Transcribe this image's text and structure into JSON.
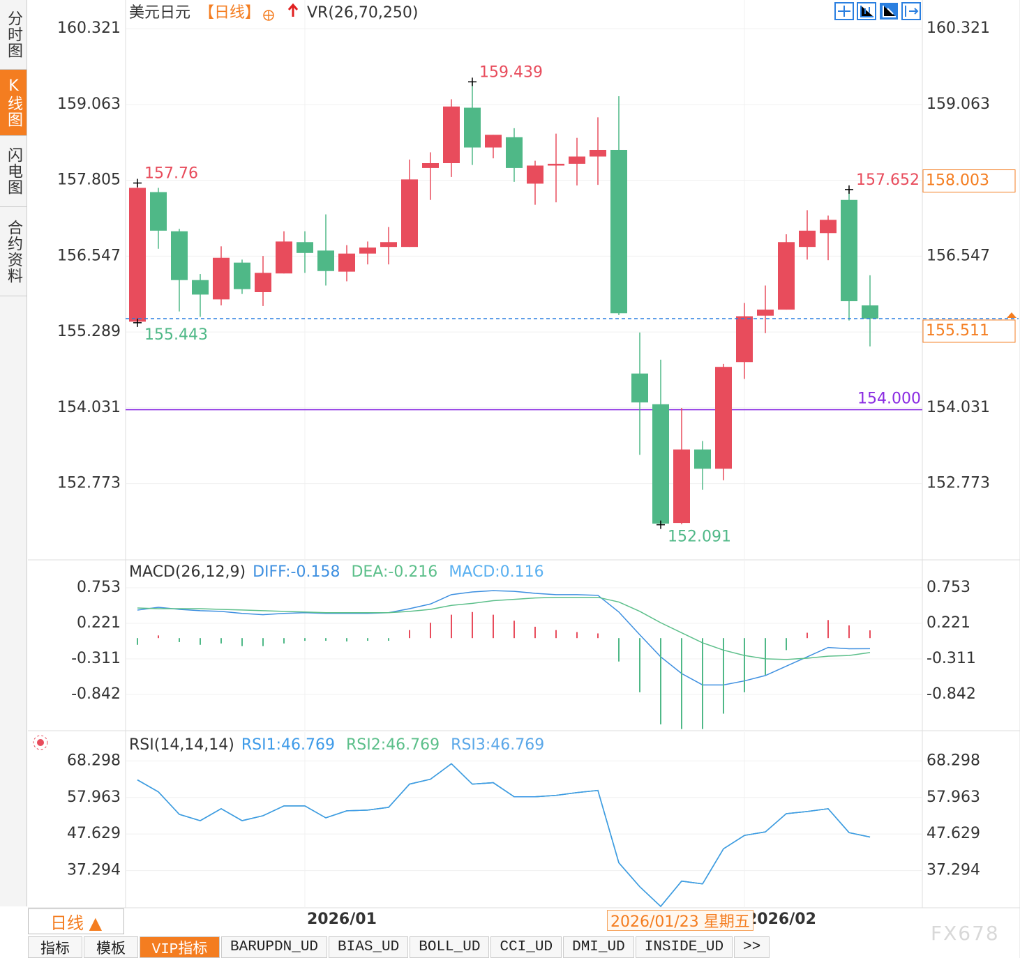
{
  "chart_data": [
    {
      "type": "candlestick",
      "title": "美元日元",
      "period": "【日线】",
      "indicator": "VR(26,70,250)",
      "categories": [
        null,
        null,
        null,
        null,
        null,
        null,
        null,
        null,
        "2026/01",
        null,
        null,
        null,
        null,
        null,
        null,
        null,
        null,
        null,
        null,
        null,
        null,
        null,
        null,
        null,
        null,
        null,
        null,
        null,
        null,
        "2026/02",
        null,
        null,
        null,
        null,
        null,
        null
      ],
      "open": [
        155.46,
        157.61,
        156.96,
        156.15,
        155.83,
        156.44,
        155.95,
        156.26,
        156.78,
        156.64,
        156.29,
        156.59,
        156.7,
        156.7,
        158.01,
        158.09,
        159.01,
        158.35,
        158.52,
        157.75,
        158.05,
        158.08,
        158.2,
        158.31,
        154.6,
        154.09,
        152.12,
        153.34,
        153.02,
        154.79,
        155.56,
        155.66,
        156.7,
        156.93,
        157.48,
        155.73
      ],
      "high": [
        157.76,
        157.68,
        157.0,
        156.25,
        156.71,
        156.49,
        156.55,
        156.96,
        156.96,
        157.24,
        156.73,
        156.79,
        157.03,
        158.15,
        158.27,
        159.15,
        159.439,
        158.56,
        158.67,
        158.13,
        158.58,
        158.51,
        158.85,
        159.2,
        155.28,
        154.83,
        154.03,
        153.48,
        154.76,
        155.77,
        156.06,
        156.91,
        157.31,
        157.22,
        157.652,
        156.23
      ],
      "low": [
        155.443,
        156.67,
        155.63,
        155.54,
        155.73,
        155.92,
        155.72,
        156.26,
        156.27,
        156.06,
        156.13,
        156.41,
        156.41,
        156.7,
        157.48,
        157.86,
        158.06,
        158.17,
        157.78,
        157.4,
        157.44,
        157.72,
        157.73,
        155.57,
        153.25,
        152.091,
        152.1,
        152.67,
        152.83,
        154.51,
        155.27,
        155.66,
        156.49,
        156.48,
        155.48,
        155.05
      ],
      "close": [
        157.68,
        156.97,
        156.15,
        155.91,
        156.52,
        156.0,
        156.27,
        156.79,
        156.6,
        156.3,
        156.59,
        156.69,
        156.78,
        157.82,
        158.09,
        159.03,
        158.35,
        158.56,
        158.01,
        158.05,
        158.08,
        158.2,
        158.31,
        155.6,
        154.12,
        152.11,
        153.34,
        153.02,
        154.71,
        155.55,
        155.66,
        156.78,
        156.97,
        157.15,
        155.8,
        155.511
      ],
      "up_color": "#e84c5c",
      "down_color": "#4fb887",
      "ylim": [
        151.508,
        160.797
      ],
      "yticks": [
        160.321,
        159.063,
        157.805,
        156.547,
        155.289,
        154.031,
        152.773
      ],
      "grid": true,
      "marked_highs": [
        0,
        16,
        34
      ],
      "marked_lows": [
        0,
        25
      ],
      "hlines": [
        {
          "value": 154,
          "label": "154.000",
          "color": "#8a2be2"
        }
      ],
      "price_tag": 158.003,
      "last_price_color": "#2a7fe0",
      "tag_color": "#f47d20"
    },
    {
      "type": "macd",
      "title": "MACD(26,12,9)",
      "up_color": "#e84c5c",
      "down_color": "#4fb887",
      "categories": [
        null,
        null,
        null,
        null,
        null,
        null,
        null,
        null,
        "2026/01",
        null,
        null,
        null,
        null,
        null,
        null,
        null,
        null,
        null,
        null,
        null,
        null,
        null,
        null,
        null,
        null,
        null,
        null,
        null,
        null,
        "2026/02",
        null,
        null,
        null,
        null,
        null,
        null
      ],
      "series": [
        {
          "name": "DIFF:-0.158",
          "color": "#3d8fe0",
          "values": [
            0.419,
            0.461,
            0.43,
            0.41,
            0.4,
            0.37,
            0.35,
            0.37,
            0.38,
            0.37,
            0.37,
            0.37,
            0.38,
            0.44,
            0.51,
            0.65,
            0.69,
            0.71,
            0.7,
            0.67,
            0.65,
            0.65,
            0.64,
            0.39,
            0.05,
            -0.28,
            -0.53,
            -0.7,
            -0.7,
            -0.64,
            -0.56,
            -0.42,
            -0.28,
            -0.14,
            -0.16,
            -0.158
          ]
        },
        {
          "name": "DEA:-0.216",
          "color": "#5cbf8a",
          "values": [
            0.45,
            0.44,
            0.44,
            0.44,
            0.43,
            0.42,
            0.41,
            0.4,
            0.39,
            0.38,
            0.38,
            0.38,
            0.38,
            0.4,
            0.43,
            0.49,
            0.52,
            0.56,
            0.58,
            0.6,
            0.61,
            0.61,
            0.61,
            0.54,
            0.4,
            0.23,
            0.08,
            -0.07,
            -0.18,
            -0.26,
            -0.31,
            -0.32,
            -0.3,
            -0.27,
            -0.26,
            -0.216
          ]
        },
        {
          "name": "MACD:0.116",
          "color": "#5ab0f0",
          "kind": "bar",
          "values": [
            -0.1,
            0.04,
            -0.06,
            -0.1,
            -0.08,
            -0.12,
            -0.12,
            -0.08,
            -0.04,
            -0.04,
            -0.05,
            -0.04,
            -0.04,
            0.12,
            0.23,
            0.35,
            0.39,
            0.35,
            0.26,
            0.17,
            0.12,
            0.09,
            0.07,
            -0.35,
            -0.81,
            -1.29,
            -1.36,
            -1.36,
            -1.13,
            -0.81,
            -0.55,
            -0.18,
            0.08,
            0.27,
            0.19,
            0.116
          ]
        }
      ],
      "ylim": [
        -1.385,
        1.17
      ],
      "yticks": [
        0.753,
        0.221,
        -0.311,
        -0.842
      ],
      "grid": true
    },
    {
      "type": "line",
      "title": "RSI(14,14,14)",
      "categories": [
        null,
        null,
        null,
        null,
        null,
        null,
        null,
        null,
        "2026/01",
        null,
        null,
        null,
        null,
        null,
        null,
        null,
        null,
        null,
        null,
        null,
        null,
        null,
        null,
        null,
        null,
        null,
        null,
        null,
        null,
        "2026/02",
        null,
        null,
        null,
        null,
        null,
        null
      ],
      "series": [
        {
          "name": "RSI1:46.769",
          "color": "#3d9ae8",
          "values": [
            62.93,
            59.55,
            53.19,
            51.4,
            54.78,
            51.4,
            52.8,
            55.58,
            55.58,
            52.2,
            54.19,
            54.38,
            55.18,
            61.74,
            63.13,
            67.5,
            61.74,
            62.14,
            58.16,
            58.16,
            58.56,
            59.35,
            59.95,
            39.48,
            32.72,
            27.15,
            34.31,
            33.52,
            43.45,
            47.23,
            48.22,
            53.39,
            53.99,
            54.78,
            48.02,
            46.769
          ]
        },
        {
          "name": "RSI2:46.769",
          "color": "#5cbf8a",
          "values": [
            62.93,
            59.55,
            53.19,
            51.4,
            54.78,
            51.4,
            52.8,
            55.58,
            55.58,
            52.2,
            54.19,
            54.38,
            55.18,
            61.74,
            63.13,
            67.5,
            61.74,
            62.14,
            58.16,
            58.16,
            58.56,
            59.35,
            59.95,
            39.48,
            32.72,
            27.15,
            34.31,
            33.52,
            43.45,
            47.23,
            48.22,
            53.39,
            53.99,
            54.78,
            48.02,
            46.769
          ]
        },
        {
          "name": "RSI3:46.769",
          "color": "#5aa7e8",
          "values": [
            62.93,
            59.55,
            53.19,
            51.4,
            54.78,
            51.4,
            52.8,
            55.58,
            55.58,
            52.2,
            54.19,
            54.38,
            55.18,
            61.74,
            63.13,
            67.5,
            61.74,
            62.14,
            58.16,
            58.16,
            58.56,
            59.35,
            59.95,
            39.48,
            32.72,
            27.15,
            34.31,
            33.52,
            43.45,
            47.23,
            48.22,
            53.39,
            53.99,
            54.78,
            48.02,
            46.769
          ]
        }
      ],
      "ylim": [
        26.76,
        76.45
      ],
      "yticks": [
        68.298,
        57.963,
        47.629,
        37.294
      ],
      "grid": true
    }
  ],
  "ui": {
    "sidebar": [
      "分时图",
      "K线图",
      "闪电图",
      "合约资料"
    ],
    "period_button": "日线 ▲",
    "tabs": [
      "指标",
      "模板",
      "VIP指标",
      "BARUPDN_UD",
      "BIAS_UD",
      "BOLL_UD",
      "CCI_UD",
      "DMI_UD",
      "INSIDE_UD",
      ">>"
    ],
    "crosshair_label": "2026/01/23 星期五",
    "watermark": "FX678"
  }
}
